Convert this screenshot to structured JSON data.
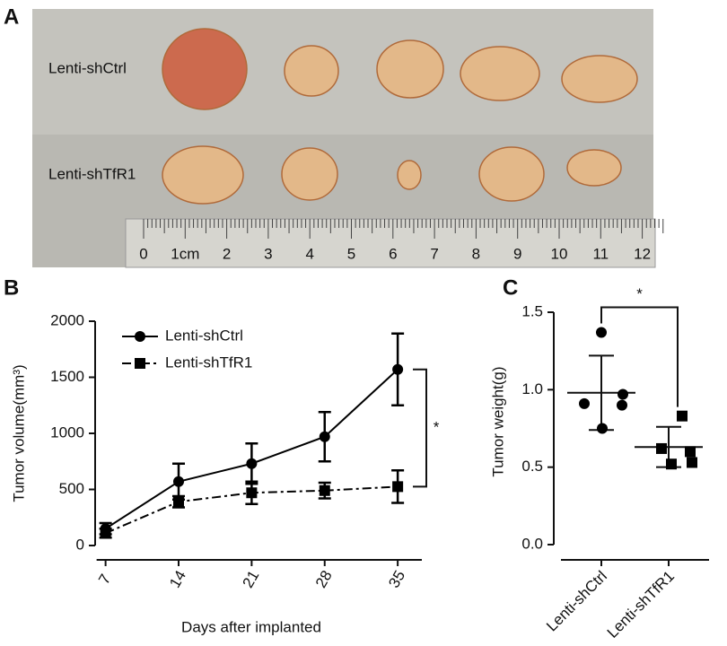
{
  "photo": {
    "panel_label": "A",
    "rows": [
      "Lenti-shCtrl",
      "Lenti-shTfR1"
    ],
    "ruler_labels": [
      "0",
      "1cm",
      "2",
      "3",
      "4",
      "5",
      "6",
      "7",
      "8",
      "9",
      "10",
      "11",
      "12"
    ]
  },
  "chart_data": [
    {
      "type": "line",
      "panel_label": "B",
      "x_label": "Days after implanted",
      "y_label": "Tumor volume(mm³)",
      "x": [
        7,
        14,
        21,
        28,
        35
      ],
      "xlim": [
        6,
        38
      ],
      "xticks": [
        7,
        14,
        21,
        28,
        35
      ],
      "ylim": [
        0,
        2000
      ],
      "yticks": [
        0,
        500,
        1000,
        1500,
        2000
      ],
      "series": [
        {
          "name": "Lenti-shCtrl",
          "color": "#000000",
          "marker": "circle",
          "line_style": "solid",
          "values": [
            150,
            570,
            730,
            970,
            1570
          ],
          "errors": [
            50,
            160,
            180,
            220,
            320
          ]
        },
        {
          "name": "Lenti-shTfR1",
          "color": "#000000",
          "marker": "square",
          "line_style": "dashdot",
          "values": [
            110,
            390,
            470,
            490,
            525
          ],
          "errors": [
            40,
            50,
            100,
            70,
            145
          ]
        }
      ],
      "legend": "upper left",
      "annotation": "*"
    },
    {
      "type": "scatter",
      "panel_label": "C",
      "y_label": "Tumor weight(g)",
      "categories": [
        "Lenti-shCtrl",
        "Lenti-shTfR1"
      ],
      "markers": [
        "circle",
        "square"
      ],
      "color": "#000000",
      "values": [
        [
          1.37,
          0.97,
          0.91,
          0.9,
          0.75
        ],
        [
          0.83,
          0.62,
          0.6,
          0.52,
          0.53
        ]
      ],
      "means": [
        0.98,
        0.63
      ],
      "sd": [
        0.24,
        0.13
      ],
      "ylim": [
        0,
        1.5
      ],
      "yticks": [
        {
          "value": 0,
          "label": "0.0"
        },
        0.5,
        {
          "value": 1,
          "label": "1.0"
        },
        1.5
      ],
      "annotation": "*"
    }
  ]
}
